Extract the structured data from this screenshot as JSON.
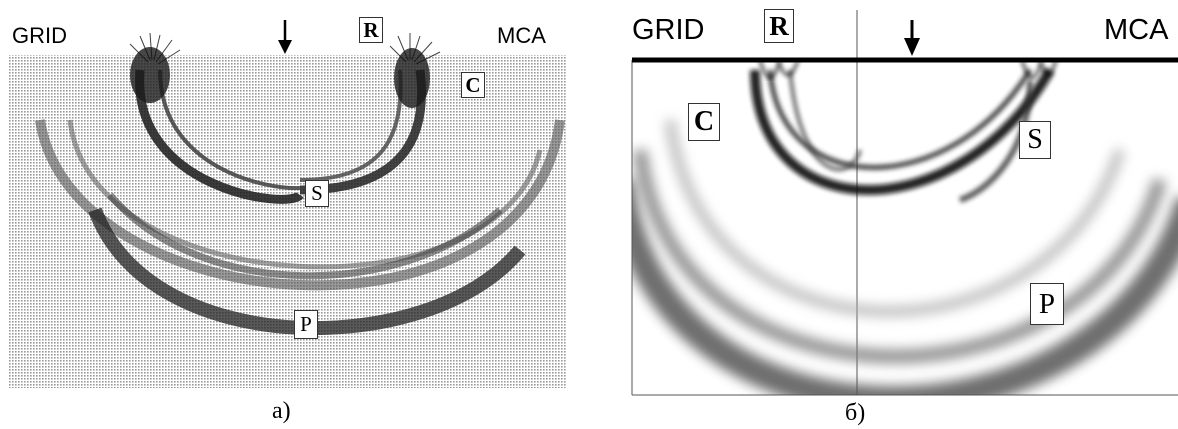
{
  "panel_a": {
    "left_label": "GRID",
    "right_label": "MCA",
    "wave_labels": [
      "R",
      "C",
      "S",
      "P"
    ],
    "caption": "a)"
  },
  "panel_b": {
    "left_label": "GRID",
    "right_label": "MCA",
    "wave_labels": [
      "R",
      "C",
      "S",
      "P"
    ],
    "caption": "б)"
  }
}
